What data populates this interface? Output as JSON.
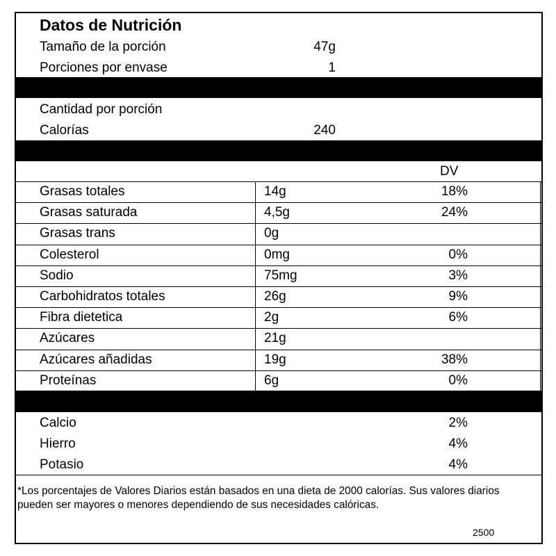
{
  "header": {
    "title": "Datos de Nutrición",
    "serving_size_label": "Tamaño de la porción",
    "serving_size_value": "47g",
    "servings_label": "Porciones por envase",
    "servings_value": "1"
  },
  "calories_section": {
    "amount_label": "Cantidad por porción",
    "calories_label": "Calorías",
    "calories_value": "240"
  },
  "dv_header": "DV",
  "nutrients": [
    {
      "name": "Grasas totales",
      "amount": "14g",
      "dv": "18%"
    },
    {
      "name": "Grasas saturada",
      "amount": "4,5g",
      "dv": "24%"
    },
    {
      "name": "Grasas trans",
      "amount": "0g",
      "dv": ""
    },
    {
      "name": "Colesterol",
      "amount": "0mg",
      "dv": "0%"
    },
    {
      "name": "Sodio",
      "amount": "75mg",
      "dv": "3%"
    },
    {
      "name": "Carbohidratos totales",
      "amount": "26g",
      "dv": "9%"
    },
    {
      "name": "Fibra dietetica",
      "amount": "2g",
      "dv": "6%"
    },
    {
      "name": "Azúcares",
      "amount": "21g",
      "dv": ""
    },
    {
      "name": "Azúcares añadidas",
      "amount": "19g",
      "dv": "38%"
    },
    {
      "name": "Proteínas",
      "amount": "6g",
      "dv": "0%"
    }
  ],
  "minerals": [
    {
      "name": "Calcio",
      "dv": "2%"
    },
    {
      "name": "Hierro",
      "dv": "4%"
    },
    {
      "name": "Potasio",
      "dv": "4%"
    }
  ],
  "footnote": {
    "line1": "*Los porcentajes de Valores Diarios están basados en una dieta de 2000 calorías. Sus valores diarios",
    "line2": "pueden ser mayores o menores dependiendo de sus necesidades calóricas.",
    "value": "2500"
  }
}
